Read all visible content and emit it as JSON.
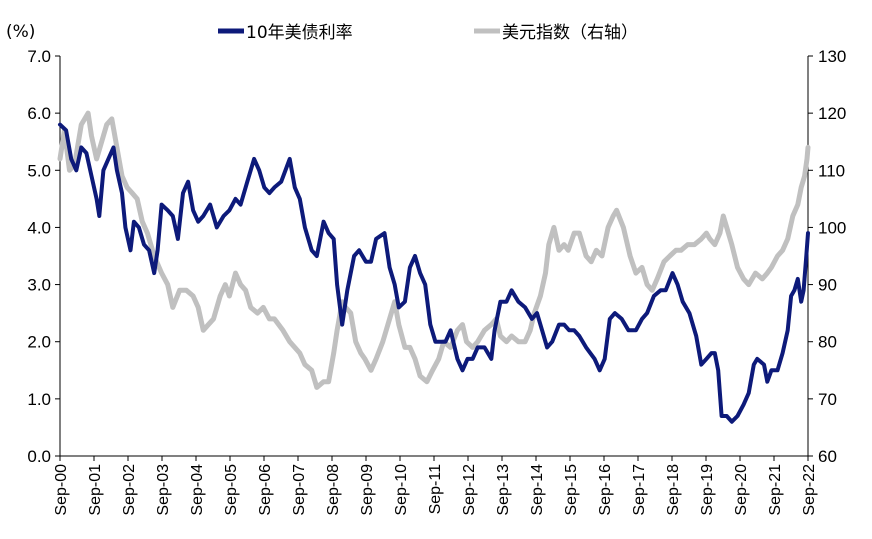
{
  "chart_data": {
    "type": "line",
    "unit_label": "(%)",
    "x_tick_labels": [
      "Sep-00",
      "Sep-01",
      "Sep-02",
      "Sep-03",
      "Sep-04",
      "Sep-05",
      "Sep-06",
      "Sep-07",
      "Sep-08",
      "Sep-09",
      "Sep-10",
      "Sep-11",
      "Sep-12",
      "Sep-13",
      "Sep-14",
      "Sep-15",
      "Sep-16",
      "Sep-17",
      "Sep-18",
      "Sep-19",
      "Sep-20",
      "Sep-21",
      "Sep-22"
    ],
    "y_left": {
      "min": 0,
      "max": 7,
      "ticks": [
        "0.0",
        "1.0",
        "2.0",
        "3.0",
        "4.0",
        "5.0",
        "6.0",
        "7.0"
      ]
    },
    "y_right": {
      "min": 60,
      "max": 130,
      "ticks": [
        "60",
        "70",
        "80",
        "90",
        "100",
        "110",
        "120",
        "130"
      ]
    },
    "x_range": [
      2000.67,
      2022.75
    ],
    "series": [
      {
        "name": "10年美债利率",
        "axis": "left",
        "color": "#0d1a7a",
        "points": [
          [
            2000.67,
            5.8
          ],
          [
            2000.85,
            5.7
          ],
          [
            2001.0,
            5.2
          ],
          [
            2001.15,
            5.0
          ],
          [
            2001.3,
            5.4
          ],
          [
            2001.45,
            5.3
          ],
          [
            2001.6,
            4.9
          ],
          [
            2001.75,
            4.5
          ],
          [
            2001.83,
            4.2
          ],
          [
            2001.95,
            5.0
          ],
          [
            2002.1,
            5.2
          ],
          [
            2002.25,
            5.4
          ],
          [
            2002.35,
            5.0
          ],
          [
            2002.5,
            4.6
          ],
          [
            2002.6,
            4.0
          ],
          [
            2002.75,
            3.6
          ],
          [
            2002.85,
            4.1
          ],
          [
            2003.0,
            4.0
          ],
          [
            2003.15,
            3.7
          ],
          [
            2003.3,
            3.6
          ],
          [
            2003.45,
            3.2
          ],
          [
            2003.55,
            3.6
          ],
          [
            2003.67,
            4.4
          ],
          [
            2003.85,
            4.3
          ],
          [
            2004.0,
            4.2
          ],
          [
            2004.15,
            3.8
          ],
          [
            2004.3,
            4.6
          ],
          [
            2004.45,
            4.8
          ],
          [
            2004.6,
            4.3
          ],
          [
            2004.75,
            4.1
          ],
          [
            2004.9,
            4.2
          ],
          [
            2005.1,
            4.4
          ],
          [
            2005.3,
            4.0
          ],
          [
            2005.5,
            4.2
          ],
          [
            2005.67,
            4.3
          ],
          [
            2005.85,
            4.5
          ],
          [
            2006.0,
            4.4
          ],
          [
            2006.2,
            4.8
          ],
          [
            2006.4,
            5.2
          ],
          [
            2006.55,
            5.0
          ],
          [
            2006.7,
            4.7
          ],
          [
            2006.85,
            4.6
          ],
          [
            2007.0,
            4.7
          ],
          [
            2007.2,
            4.8
          ],
          [
            2007.45,
            5.2
          ],
          [
            2007.6,
            4.7
          ],
          [
            2007.75,
            4.5
          ],
          [
            2007.9,
            4.0
          ],
          [
            2008.1,
            3.6
          ],
          [
            2008.25,
            3.5
          ],
          [
            2008.45,
            4.1
          ],
          [
            2008.6,
            3.9
          ],
          [
            2008.75,
            3.8
          ],
          [
            2008.85,
            3.0
          ],
          [
            2009.0,
            2.3
          ],
          [
            2009.15,
            2.9
          ],
          [
            2009.35,
            3.5
          ],
          [
            2009.5,
            3.6
          ],
          [
            2009.7,
            3.4
          ],
          [
            2009.85,
            3.4
          ],
          [
            2010.0,
            3.8
          ],
          [
            2010.25,
            3.9
          ],
          [
            2010.4,
            3.3
          ],
          [
            2010.55,
            3.0
          ],
          [
            2010.67,
            2.6
          ],
          [
            2010.85,
            2.7
          ],
          [
            2011.0,
            3.3
          ],
          [
            2011.15,
            3.5
          ],
          [
            2011.3,
            3.2
          ],
          [
            2011.45,
            3.0
          ],
          [
            2011.6,
            2.3
          ],
          [
            2011.75,
            2.0
          ],
          [
            2011.9,
            2.0
          ],
          [
            2012.05,
            2.0
          ],
          [
            2012.2,
            2.2
          ],
          [
            2012.4,
            1.7
          ],
          [
            2012.55,
            1.5
          ],
          [
            2012.7,
            1.7
          ],
          [
            2012.85,
            1.7
          ],
          [
            2013.0,
            1.9
          ],
          [
            2013.2,
            1.9
          ],
          [
            2013.4,
            1.7
          ],
          [
            2013.5,
            2.2
          ],
          [
            2013.67,
            2.7
          ],
          [
            2013.85,
            2.7
          ],
          [
            2014.0,
            2.9
          ],
          [
            2014.2,
            2.7
          ],
          [
            2014.4,
            2.6
          ],
          [
            2014.6,
            2.4
          ],
          [
            2014.75,
            2.5
          ],
          [
            2014.9,
            2.2
          ],
          [
            2015.05,
            1.9
          ],
          [
            2015.2,
            2.0
          ],
          [
            2015.4,
            2.3
          ],
          [
            2015.55,
            2.3
          ],
          [
            2015.7,
            2.2
          ],
          [
            2015.85,
            2.2
          ],
          [
            2016.0,
            2.1
          ],
          [
            2016.2,
            1.9
          ],
          [
            2016.45,
            1.7
          ],
          [
            2016.6,
            1.5
          ],
          [
            2016.75,
            1.7
          ],
          [
            2016.9,
            2.4
          ],
          [
            2017.05,
            2.5
          ],
          [
            2017.25,
            2.4
          ],
          [
            2017.45,
            2.2
          ],
          [
            2017.67,
            2.2
          ],
          [
            2017.85,
            2.4
          ],
          [
            2018.0,
            2.5
          ],
          [
            2018.2,
            2.8
          ],
          [
            2018.4,
            2.9
          ],
          [
            2018.55,
            2.9
          ],
          [
            2018.75,
            3.2
          ],
          [
            2018.9,
            3.0
          ],
          [
            2019.05,
            2.7
          ],
          [
            2019.25,
            2.5
          ],
          [
            2019.45,
            2.1
          ],
          [
            2019.6,
            1.6
          ],
          [
            2019.75,
            1.7
          ],
          [
            2019.9,
            1.8
          ],
          [
            2020.0,
            1.8
          ],
          [
            2020.1,
            1.5
          ],
          [
            2020.2,
            0.7
          ],
          [
            2020.35,
            0.7
          ],
          [
            2020.5,
            0.6
          ],
          [
            2020.67,
            0.7
          ],
          [
            2020.85,
            0.9
          ],
          [
            2021.0,
            1.1
          ],
          [
            2021.15,
            1.6
          ],
          [
            2021.25,
            1.7
          ],
          [
            2021.45,
            1.6
          ],
          [
            2021.55,
            1.3
          ],
          [
            2021.67,
            1.5
          ],
          [
            2021.85,
            1.5
          ],
          [
            2022.0,
            1.8
          ],
          [
            2022.15,
            2.2
          ],
          [
            2022.25,
            2.8
          ],
          [
            2022.35,
            2.9
          ],
          [
            2022.45,
            3.1
          ],
          [
            2022.55,
            2.7
          ],
          [
            2022.62,
            2.9
          ],
          [
            2022.7,
            3.5
          ],
          [
            2022.75,
            3.9
          ]
        ]
      },
      {
        "name": "美元指数（右轴）",
        "axis": "right",
        "color": "#c0c0c0",
        "points": [
          [
            2000.67,
            112
          ],
          [
            2000.8,
            117
          ],
          [
            2000.95,
            110
          ],
          [
            2001.1,
            111
          ],
          [
            2001.3,
            118
          ],
          [
            2001.5,
            120
          ],
          [
            2001.6,
            116
          ],
          [
            2001.75,
            112
          ],
          [
            2001.9,
            115
          ],
          [
            2002.05,
            118
          ],
          [
            2002.2,
            119
          ],
          [
            2002.35,
            114
          ],
          [
            2002.5,
            109
          ],
          [
            2002.65,
            107
          ],
          [
            2002.8,
            106
          ],
          [
            2002.95,
            105
          ],
          [
            2003.1,
            101
          ],
          [
            2003.25,
            99
          ],
          [
            2003.45,
            95
          ],
          [
            2003.67,
            92
          ],
          [
            2003.85,
            90
          ],
          [
            2004.0,
            86
          ],
          [
            2004.2,
            89
          ],
          [
            2004.4,
            89
          ],
          [
            2004.6,
            88
          ],
          [
            2004.75,
            86
          ],
          [
            2004.9,
            82
          ],
          [
            2005.05,
            83
          ],
          [
            2005.2,
            84
          ],
          [
            2005.4,
            88
          ],
          [
            2005.55,
            90
          ],
          [
            2005.67,
            88
          ],
          [
            2005.85,
            92
          ],
          [
            2006.0,
            90
          ],
          [
            2006.15,
            89
          ],
          [
            2006.3,
            86
          ],
          [
            2006.5,
            85
          ],
          [
            2006.67,
            86
          ],
          [
            2006.85,
            84
          ],
          [
            2007.0,
            84
          ],
          [
            2007.25,
            82
          ],
          [
            2007.45,
            80
          ],
          [
            2007.6,
            79
          ],
          [
            2007.75,
            78
          ],
          [
            2007.9,
            76
          ],
          [
            2008.1,
            75
          ],
          [
            2008.25,
            72
          ],
          [
            2008.45,
            73
          ],
          [
            2008.6,
            73
          ],
          [
            2008.75,
            78
          ],
          [
            2008.85,
            82
          ],
          [
            2009.0,
            87
          ],
          [
            2009.1,
            86
          ],
          [
            2009.25,
            85
          ],
          [
            2009.4,
            80
          ],
          [
            2009.55,
            78
          ],
          [
            2009.67,
            77
          ],
          [
            2009.85,
            75
          ],
          [
            2010.0,
            77
          ],
          [
            2010.2,
            80
          ],
          [
            2010.4,
            84
          ],
          [
            2010.55,
            87
          ],
          [
            2010.67,
            83
          ],
          [
            2010.85,
            79
          ],
          [
            2011.0,
            79
          ],
          [
            2011.15,
            77
          ],
          [
            2011.3,
            74
          ],
          [
            2011.5,
            73
          ],
          [
            2011.67,
            75
          ],
          [
            2011.85,
            77
          ],
          [
            2012.0,
            80
          ],
          [
            2012.2,
            79
          ],
          [
            2012.4,
            82
          ],
          [
            2012.55,
            83
          ],
          [
            2012.67,
            80
          ],
          [
            2012.85,
            79
          ],
          [
            2013.0,
            80
          ],
          [
            2013.2,
            82
          ],
          [
            2013.4,
            83
          ],
          [
            2013.55,
            84
          ],
          [
            2013.67,
            81
          ],
          [
            2013.85,
            80
          ],
          [
            2014.0,
            81
          ],
          [
            2014.2,
            80
          ],
          [
            2014.4,
            80
          ],
          [
            2014.55,
            82
          ],
          [
            2014.67,
            85
          ],
          [
            2014.85,
            88
          ],
          [
            2015.0,
            92
          ],
          [
            2015.1,
            97
          ],
          [
            2015.25,
            100
          ],
          [
            2015.4,
            96
          ],
          [
            2015.55,
            97
          ],
          [
            2015.67,
            96
          ],
          [
            2015.85,
            99
          ],
          [
            2016.0,
            99
          ],
          [
            2016.2,
            95
          ],
          [
            2016.35,
            94
          ],
          [
            2016.5,
            96
          ],
          [
            2016.67,
            95
          ],
          [
            2016.85,
            100
          ],
          [
            2017.0,
            102
          ],
          [
            2017.1,
            103
          ],
          [
            2017.3,
            100
          ],
          [
            2017.5,
            95
          ],
          [
            2017.67,
            92
          ],
          [
            2017.85,
            93
          ],
          [
            2018.0,
            90
          ],
          [
            2018.15,
            89
          ],
          [
            2018.3,
            91
          ],
          [
            2018.5,
            94
          ],
          [
            2018.67,
            95
          ],
          [
            2018.85,
            96
          ],
          [
            2019.0,
            96
          ],
          [
            2019.2,
            97
          ],
          [
            2019.4,
            97
          ],
          [
            2019.6,
            98
          ],
          [
            2019.75,
            99
          ],
          [
            2019.85,
            98
          ],
          [
            2020.0,
            97
          ],
          [
            2020.15,
            99
          ],
          [
            2020.25,
            102
          ],
          [
            2020.35,
            100
          ],
          [
            2020.5,
            97
          ],
          [
            2020.67,
            93
          ],
          [
            2020.85,
            91
          ],
          [
            2021.0,
            90
          ],
          [
            2021.2,
            92
          ],
          [
            2021.4,
            91
          ],
          [
            2021.55,
            92
          ],
          [
            2021.67,
            93
          ],
          [
            2021.85,
            95
          ],
          [
            2022.0,
            96
          ],
          [
            2022.15,
            98
          ],
          [
            2022.3,
            102
          ],
          [
            2022.45,
            104
          ],
          [
            2022.55,
            107
          ],
          [
            2022.65,
            109
          ],
          [
            2022.72,
            112
          ],
          [
            2022.75,
            114
          ]
        ]
      }
    ]
  }
}
